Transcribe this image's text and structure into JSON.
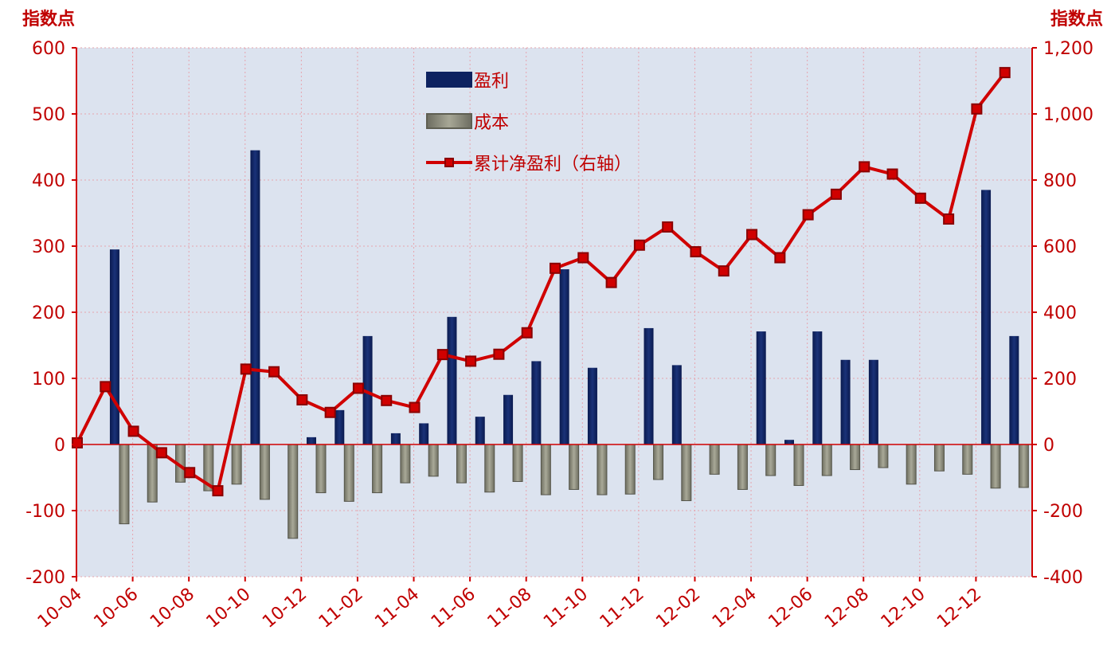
{
  "chart_data": {
    "type": "bar",
    "y_unit_left": "指数点",
    "y_unit_right": "指数点",
    "ylim_left": [
      -200,
      600
    ],
    "ylim_right": [
      -400,
      1200
    ],
    "yticks_left": [
      "600",
      "500",
      "400",
      "300",
      "200",
      "100",
      "0",
      "-100",
      "-200"
    ],
    "yticks_right": [
      "1,200",
      "1,000",
      "800",
      "600",
      "400",
      "200",
      "0",
      "-200",
      "-400"
    ],
    "x_tick_labels": [
      "10-04",
      "10-06",
      "10-08",
      "10-10",
      "10-12",
      "11-02",
      "11-04",
      "11-06",
      "11-08",
      "11-10",
      "11-12",
      "12-02",
      "12-04",
      "12-06",
      "12-08",
      "12-10",
      "12-12"
    ],
    "categories": [
      "10-04",
      "10-05",
      "10-06",
      "10-07",
      "10-08",
      "10-09",
      "10-10",
      "10-11",
      "10-12",
      "11-01",
      "11-02",
      "11-03",
      "11-04",
      "11-05",
      "11-06",
      "11-07",
      "11-08",
      "11-09",
      "11-10",
      "11-11",
      "11-12",
      "12-01",
      "12-02",
      "12-03",
      "12-04",
      "12-05",
      "12-06",
      "12-07",
      "12-08",
      "12-09",
      "12-10",
      "12-11",
      "12-12",
      "13-01"
    ],
    "grid": true,
    "legend_position": "top-center",
    "series": [
      {
        "name": "盈利",
        "type": "bar",
        "axis": "left",
        "color": "#0d2260",
        "values": [
          0,
          295,
          0,
          0,
          0,
          0,
          445,
          0,
          11,
          52,
          164,
          17,
          32,
          193,
          42,
          75,
          126,
          265,
          116,
          0,
          176,
          120,
          0,
          0,
          171,
          7,
          171,
          128,
          128,
          0,
          0,
          0,
          385,
          164
        ]
      },
      {
        "name": "成本",
        "type": "bar",
        "axis": "left",
        "color": "#8f8f80",
        "values": [
          0,
          -120,
          -87,
          -57,
          -70,
          -60,
          -83,
          -142,
          -73,
          -86,
          -73,
          -58,
          -48,
          -58,
          -72,
          -56,
          -76,
          -68,
          -76,
          -75,
          -53,
          -85,
          -45,
          -68,
          -47,
          -62,
          -47,
          -38,
          -35,
          -60,
          -40,
          -45,
          -66,
          -65
        ]
      },
      {
        "name": "累计净盈利（右轴）",
        "type": "line",
        "axis": "right",
        "color": "#d00000",
        "values": [
          5,
          175,
          40,
          -25,
          -85,
          -140,
          228,
          220,
          135,
          97,
          170,
          133,
          112,
          272,
          252,
          273,
          338,
          533,
          565,
          490,
          603,
          658,
          583,
          525,
          635,
          565,
          695,
          757,
          840,
          818,
          745,
          682,
          1015,
          1125
        ]
      }
    ]
  }
}
